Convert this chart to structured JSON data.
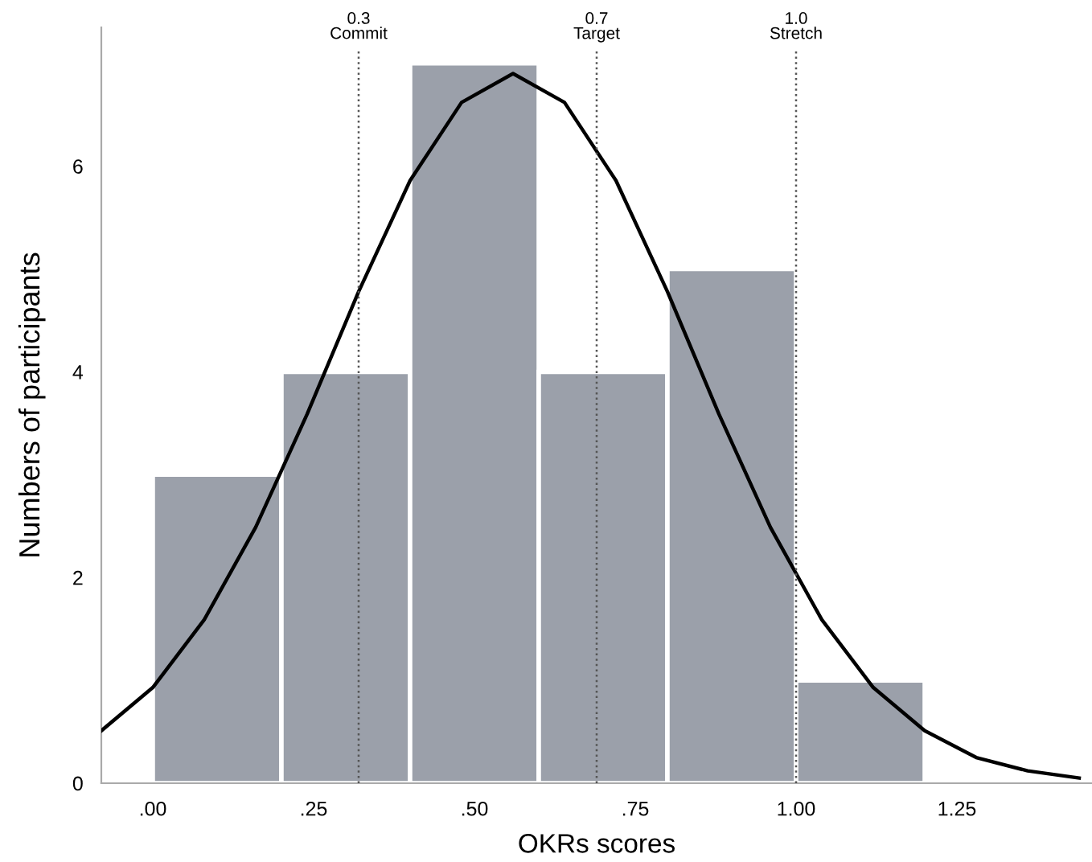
{
  "chart_data": {
    "type": "histogram",
    "xlabel": "OKRs scores",
    "ylabel": "Numbers of participants",
    "bins": [
      0,
      0.2,
      0.4,
      0.6,
      0.8,
      1.0,
      1.2
    ],
    "values": [
      3,
      4,
      7,
      4,
      5,
      1
    ],
    "color": "#9ba0aa",
    "series": [
      {
        "type": "line",
        "color": "#000000",
        "x": [
          -0.08,
          0.0,
          0.08,
          0.16,
          0.24,
          0.32,
          0.4,
          0.48,
          0.56,
          0.64,
          0.72,
          0.8,
          0.88,
          0.96,
          1.04,
          1.12,
          1.2,
          1.28,
          1.36,
          1.44
        ],
        "values": [
          0.51,
          0.93,
          1.59,
          2.49,
          3.59,
          4.78,
          5.86,
          6.62,
          6.9,
          6.62,
          5.86,
          4.78,
          3.59,
          2.49,
          1.59,
          0.93,
          0.51,
          0.25,
          0.12,
          0.05
        ]
      }
    ],
    "ref_lines": [
      {
        "axis": "x",
        "value": 0.32,
        "label": "0.3\nCommit",
        "line_style": "dotted",
        "color": "#555555"
      },
      {
        "axis": "x",
        "value": 0.69,
        "label": "0.7\nTarget",
        "line_style": "dotted",
        "color": "#555555"
      },
      {
        "axis": "x",
        "value": 1.0,
        "label": "1.0\nStretch",
        "line_style": "dotted",
        "color": "#555555"
      }
    ],
    "xlim": [
      -0.08,
      1.46
    ],
    "ylim": [
      0,
      7.35
    ],
    "xticks": [
      {
        "value": 0,
        "label": ".00"
      },
      {
        "value": 0.25,
        "label": ".25"
      },
      {
        "value": 0.5,
        "label": ".50"
      },
      {
        "value": 0.75,
        "label": ".75"
      },
      {
        "value": 1.0,
        "label": "1.00"
      },
      {
        "value": 1.25,
        "label": "1.25"
      }
    ],
    "yticks": [
      0,
      2,
      4,
      6
    ],
    "grid": false,
    "legend": false
  }
}
